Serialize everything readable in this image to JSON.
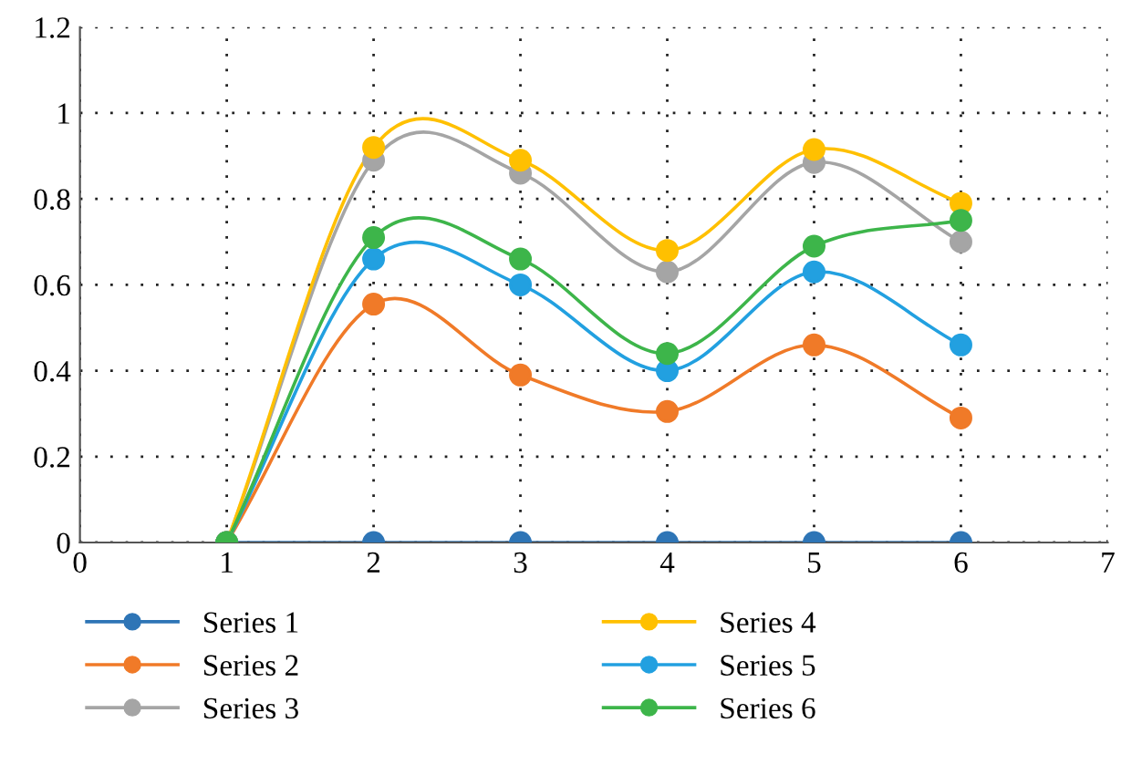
{
  "chart_data": {
    "type": "line",
    "x": [
      1,
      2,
      3,
      4,
      5,
      6
    ],
    "series": [
      {
        "name": "Series 1",
        "color": "#2e75b6",
        "values": [
          0,
          0,
          0,
          0,
          0,
          0
        ]
      },
      {
        "name": "Series 2",
        "color": "#f07a28",
        "values": [
          0,
          0.555,
          0.39,
          0.305,
          0.46,
          0.29
        ]
      },
      {
        "name": "Series 3",
        "color": "#a5a5a5",
        "values": [
          0,
          0.89,
          0.86,
          0.63,
          0.885,
          0.7
        ]
      },
      {
        "name": "Series 4",
        "color": "#ffc000",
        "values": [
          0,
          0.92,
          0.89,
          0.68,
          0.915,
          0.79
        ]
      },
      {
        "name": "Series 5",
        "color": "#22a0e0",
        "values": [
          0,
          0.66,
          0.6,
          0.4,
          0.63,
          0.46
        ]
      },
      {
        "name": "Series 6",
        "color": "#3db54a",
        "values": [
          0,
          0.71,
          0.66,
          0.44,
          0.69,
          0.75
        ]
      }
    ],
    "xlim": [
      0,
      7
    ],
    "xticks": [
      0,
      1,
      2,
      3,
      4,
      5,
      6,
      7
    ],
    "ylim": [
      0,
      1.2
    ],
    "yticks": [
      0,
      0.2,
      0.4,
      0.6,
      0.8,
      1,
      1.2
    ],
    "grid": true,
    "legend": "bottom",
    "marker": "circle",
    "line_style": "solid"
  }
}
